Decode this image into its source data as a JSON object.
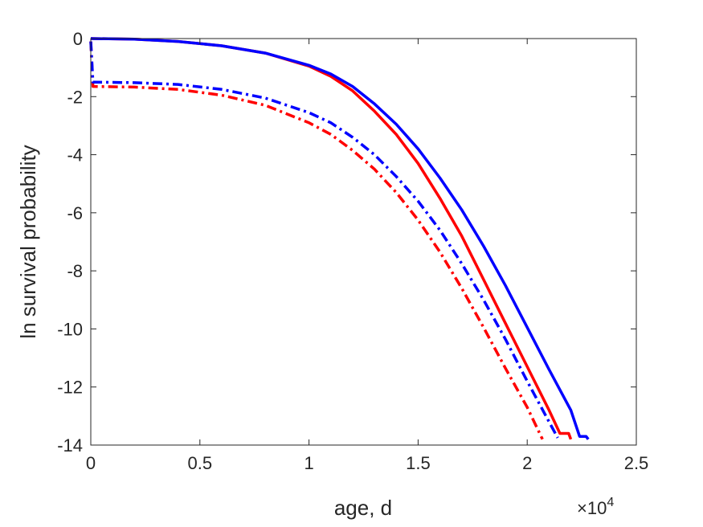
{
  "chart_data": {
    "type": "line",
    "xlabel": "age, d",
    "ylabel": "ln survival probability",
    "x_multiplier": {
      "base": "×10",
      "exponent": "4"
    },
    "xlim": [
      0,
      25000
    ],
    "ylim": [
      -14,
      0
    ],
    "xticks": [
      0,
      5000,
      10000,
      15000,
      20000,
      25000
    ],
    "xtick_labels": [
      "0",
      "0.5",
      "1",
      "1.5",
      "2",
      "2.5"
    ],
    "yticks": [
      0,
      -2,
      -4,
      -6,
      -8,
      -10,
      -12,
      -14
    ],
    "ytick_labels": [
      "0",
      "-2",
      "-4",
      "-6",
      "-8",
      "-10",
      "-12",
      "-14"
    ],
    "grid": false,
    "series": [
      {
        "color": "#ff0000",
        "style": "solid",
        "points": [
          [
            0,
            0
          ],
          [
            2000,
            -0.02
          ],
          [
            4000,
            -0.1
          ],
          [
            6000,
            -0.25
          ],
          [
            8000,
            -0.5
          ],
          [
            10000,
            -0.95
          ],
          [
            11000,
            -1.3
          ],
          [
            12000,
            -1.8
          ],
          [
            13000,
            -2.5
          ],
          [
            14000,
            -3.3
          ],
          [
            15000,
            -4.3
          ],
          [
            16000,
            -5.5
          ],
          [
            17000,
            -6.8
          ],
          [
            18000,
            -8.3
          ],
          [
            19000,
            -9.8
          ],
          [
            20000,
            -11.3
          ],
          [
            21000,
            -12.8
          ],
          [
            21500,
            -13.6
          ],
          [
            21900,
            -13.6
          ],
          [
            22000,
            -13.8
          ]
        ]
      },
      {
        "color": "#0000ff",
        "style": "solid",
        "points": [
          [
            0,
            0
          ],
          [
            2000,
            -0.02
          ],
          [
            4000,
            -0.1
          ],
          [
            6000,
            -0.25
          ],
          [
            8000,
            -0.5
          ],
          [
            10000,
            -0.92
          ],
          [
            11000,
            -1.22
          ],
          [
            12000,
            -1.65
          ],
          [
            13000,
            -2.25
          ],
          [
            14000,
            -2.95
          ],
          [
            15000,
            -3.8
          ],
          [
            16000,
            -4.8
          ],
          [
            17000,
            -5.9
          ],
          [
            18000,
            -7.15
          ],
          [
            19000,
            -8.5
          ],
          [
            20000,
            -9.95
          ],
          [
            21000,
            -11.4
          ],
          [
            22000,
            -12.8
          ],
          [
            22400,
            -13.7
          ],
          [
            22700,
            -13.7
          ],
          [
            22800,
            -13.8
          ]
        ]
      },
      {
        "color": "#ff0000",
        "style": "dashdot",
        "points": [
          [
            0,
            -0.1
          ],
          [
            100,
            -1.65
          ],
          [
            2000,
            -1.67
          ],
          [
            4000,
            -1.75
          ],
          [
            6000,
            -1.95
          ],
          [
            8000,
            -2.3
          ],
          [
            10000,
            -2.9
          ],
          [
            11000,
            -3.3
          ],
          [
            12000,
            -3.85
          ],
          [
            13000,
            -4.5
          ],
          [
            14000,
            -5.3
          ],
          [
            15000,
            -6.25
          ],
          [
            16000,
            -7.35
          ],
          [
            17000,
            -8.6
          ],
          [
            18000,
            -9.95
          ],
          [
            19000,
            -11.35
          ],
          [
            20000,
            -12.7
          ],
          [
            20700,
            -13.8
          ]
        ]
      },
      {
        "color": "#0000ff",
        "style": "dashdot",
        "points": [
          [
            0,
            -0.1
          ],
          [
            100,
            -1.5
          ],
          [
            2000,
            -1.52
          ],
          [
            4000,
            -1.58
          ],
          [
            6000,
            -1.75
          ],
          [
            8000,
            -2.05
          ],
          [
            10000,
            -2.55
          ],
          [
            11000,
            -2.9
          ],
          [
            12000,
            -3.4
          ],
          [
            13000,
            -4.0
          ],
          [
            14000,
            -4.75
          ],
          [
            15000,
            -5.6
          ],
          [
            16000,
            -6.6
          ],
          [
            17000,
            -7.75
          ],
          [
            18000,
            -9.0
          ],
          [
            19000,
            -10.35
          ],
          [
            20000,
            -11.8
          ],
          [
            21000,
            -13.2
          ],
          [
            21400,
            -13.75
          ]
        ]
      }
    ]
  }
}
